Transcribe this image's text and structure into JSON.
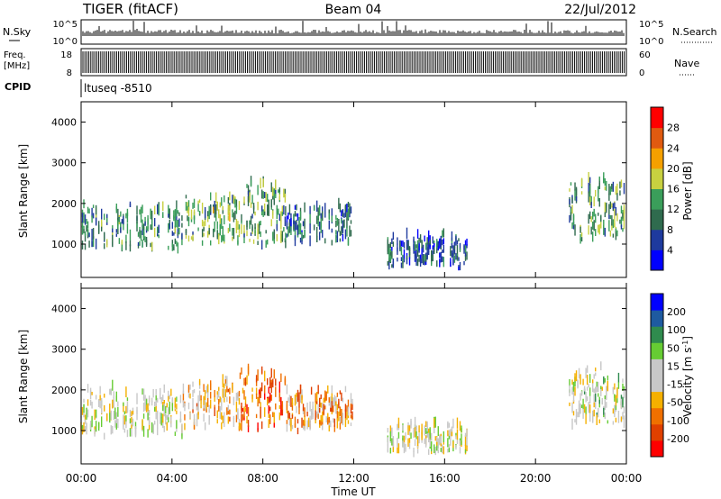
{
  "header": {
    "station": "TIGER (fitACF)",
    "beam": "Beam 04",
    "date": "22/Jul/2012"
  },
  "top_strips": {
    "nsky": {
      "label": "N.Sky",
      "scale_top": "10^5",
      "scale_bottom": "10^0",
      "right_label": "N.Search",
      "right_top": "10^5",
      "right_bottom": "10^0"
    },
    "freq": {
      "label_line1": "Freq.",
      "label_line2": "[MHz]",
      "left_top": "18",
      "left_bottom": "8",
      "right_top": "60",
      "right_bottom": "0",
      "right_label": "Nave"
    },
    "cpid": {
      "label": "CPID",
      "value": "ltuseq -8510"
    }
  },
  "time_axis": {
    "label": "Time UT",
    "ticks": [
      "00:00",
      "04:00",
      "08:00",
      "12:00",
      "16:00",
      "20:00",
      "00:00"
    ]
  },
  "range_axis": {
    "label": "Slant Range [km]",
    "ticks": [
      "1000",
      "2000",
      "3000",
      "4000"
    ]
  },
  "colors": {
    "power_scale": [
      "#0000ff",
      "#1e3a9e",
      "#2f6b4e",
      "#3a9e5a",
      "#c8d040",
      "#f5a000",
      "#e05a10",
      "#ff0000"
    ],
    "velocity_scale": [
      "#ff0000",
      "#e04000",
      "#f07000",
      "#f5b000",
      "#c8c8c8",
      "#c8c8c8",
      "#66cc33",
      "#2f8b4e",
      "#1e5aa0",
      "#0000ff"
    ]
  },
  "chart_data": [
    {
      "type": "heatmap",
      "name": "power",
      "xlabel": "Time UT",
      "ylabel": "Slant Range [km]",
      "xlim_hours": [
        0,
        24
      ],
      "ylim_km": [
        180,
        4500
      ],
      "colorbar": {
        "label": "Power [dB]",
        "ticks": [
          "4",
          "8",
          "12",
          "16",
          "20",
          "24",
          "28"
        ],
        "range": [
          0,
          30
        ]
      },
      "echo_regions": [
        {
          "t0": 0.0,
          "t1": 4.5,
          "r0": 750,
          "r1": 2000,
          "mean": 10
        },
        {
          "t0": 4.5,
          "t1": 7.0,
          "r0": 900,
          "r1": 2200,
          "mean": 13
        },
        {
          "t0": 7.0,
          "t1": 9.0,
          "r0": 800,
          "r1": 2500,
          "mean": 12
        },
        {
          "t0": 9.0,
          "t1": 12.0,
          "r0": 900,
          "r1": 2000,
          "mean": 9
        },
        {
          "t0": 13.5,
          "t1": 17.0,
          "r0": 300,
          "r1": 1200,
          "mean": 7
        },
        {
          "t0": 21.5,
          "t1": 23.9,
          "r0": 1000,
          "r1": 2600,
          "mean": 12
        }
      ]
    },
    {
      "type": "heatmap",
      "name": "velocity",
      "xlabel": "Time UT",
      "ylabel": "Slant Range [km]",
      "xlim_hours": [
        0,
        24
      ],
      "ylim_km": [
        180,
        4500
      ],
      "colorbar": {
        "label": "Velocity [m s-1]",
        "ticks": [
          "-200",
          "-100",
          "-50",
          "-15",
          "15",
          "50",
          "100",
          "200"
        ],
        "range": [
          -250,
          250
        ]
      },
      "echo_regions": [
        {
          "t0": 0.0,
          "t1": 4.5,
          "r0": 750,
          "r1": 2000,
          "mean": 0
        },
        {
          "t0": 4.5,
          "t1": 7.0,
          "r0": 900,
          "r1": 2200,
          "mean": -60
        },
        {
          "t0": 7.0,
          "t1": 9.0,
          "r0": 800,
          "r1": 2500,
          "mean": -150
        },
        {
          "t0": 9.0,
          "t1": 12.0,
          "r0": 900,
          "r1": 2000,
          "mean": -90
        },
        {
          "t0": 13.5,
          "t1": 17.0,
          "r0": 300,
          "r1": 1200,
          "mean": 0
        },
        {
          "t0": 21.5,
          "t1": 23.9,
          "r0": 1000,
          "r1": 2600,
          "mean": 5
        }
      ]
    }
  ]
}
